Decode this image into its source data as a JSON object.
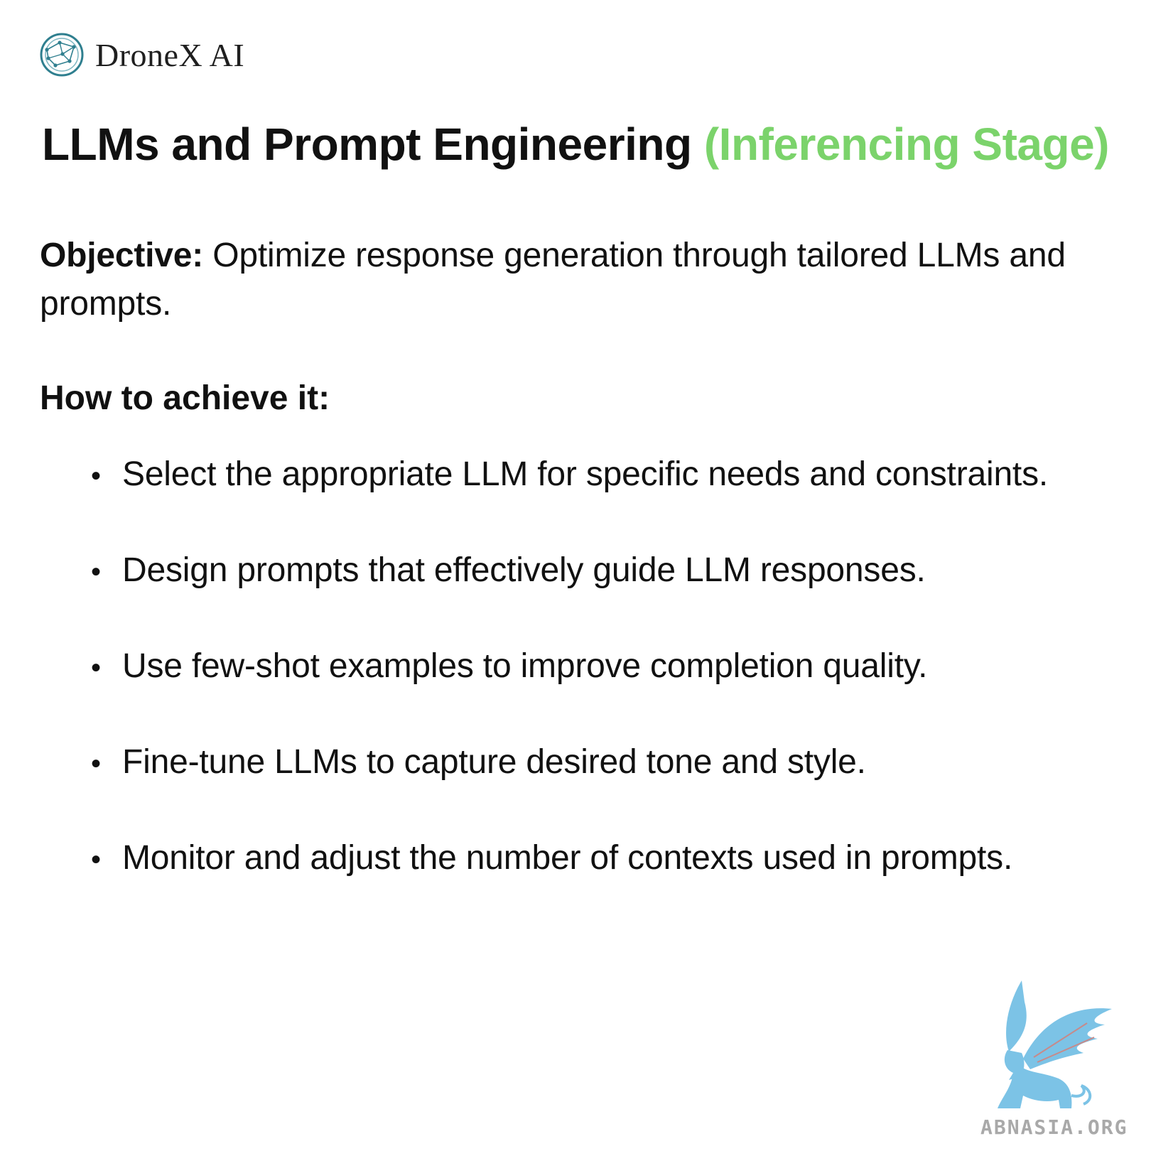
{
  "brand": {
    "name": "DroneX AI",
    "logo_icon": "network-globe-icon",
    "accent_color": "#2f7f8f"
  },
  "title": {
    "main": "LLMs and Prompt Engineering",
    "accent": "(Inferencing Stage)",
    "accent_color": "#7bd36b"
  },
  "objective": {
    "label": "Objective:",
    "text": "Optimize response generation through tailored LLMs and prompts."
  },
  "how_to": {
    "heading": "How to achieve it:",
    "items": [
      "Select the appropriate LLM for specific needs and constraints.",
      "Design prompts that effectively guide LLM responses.",
      "Use few-shot examples to improve completion quality.",
      "Fine-tune LLMs to capture desired tone and style.",
      "Monitor and adjust the number of contexts used in prompts."
    ]
  },
  "watermark": {
    "text": "ABNASIA.ORG",
    "icon": "griffin-bird-icon",
    "color": "#7cc3e6"
  }
}
